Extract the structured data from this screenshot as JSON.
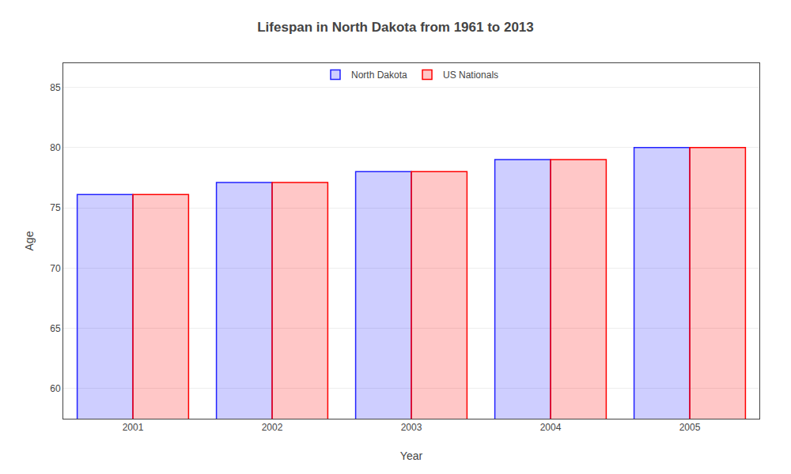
{
  "chart_data": {
    "type": "bar",
    "title": "Lifespan in North Dakota from 1961 to 2013",
    "x_label": "Year",
    "y_label": "Age",
    "categories": [
      "2001",
      "2002",
      "2003",
      "2004",
      "2005"
    ],
    "series": [
      {
        "name": "North Dakota",
        "color": "#2222ff",
        "values": [
          76.1,
          77.1,
          78.0,
          79.0,
          80.0
        ]
      },
      {
        "name": "US Nationals",
        "color": "#ff0000",
        "values": [
          76.1,
          77.1,
          78.0,
          79.0,
          80.0
        ]
      }
    ],
    "ylim": [
      57.5,
      87
    ],
    "yticks": [
      60,
      65,
      70,
      75,
      80,
      85
    ],
    "grid": true,
    "legend": "top"
  }
}
